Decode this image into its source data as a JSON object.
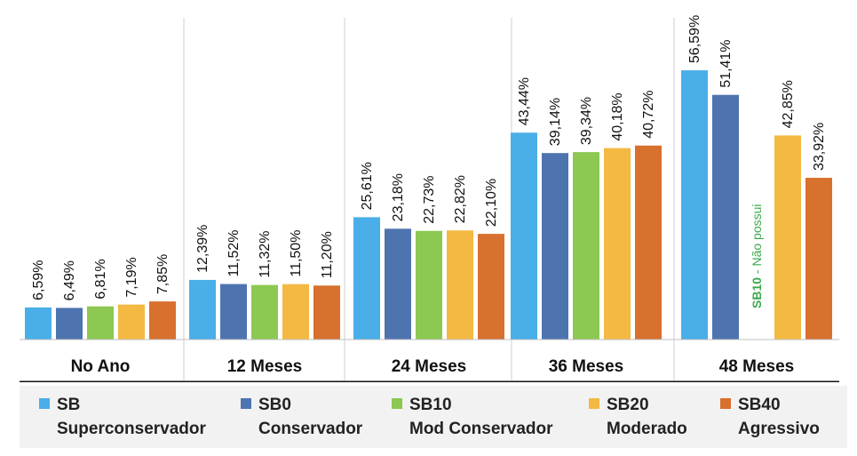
{
  "chart_data": {
    "type": "bar",
    "categories": [
      "No Ano",
      "12 Meses",
      "24 Meses",
      "36 Meses",
      "48 Meses"
    ],
    "series": [
      {
        "name": "SB Superconservador",
        "short": "SB",
        "sub": "Superconservador",
        "color": "#4aaee8",
        "values": [
          6.59,
          12.39,
          25.61,
          43.44,
          56.59
        ],
        "labels": [
          "6,59%",
          "12,39%",
          "25,61%",
          "43,44%",
          "56,59%"
        ]
      },
      {
        "name": "SB0 Conservador",
        "short": "SB0",
        "sub": "Conservador",
        "color": "#4e74b0",
        "values": [
          6.49,
          11.52,
          23.18,
          39.14,
          51.41
        ],
        "labels": [
          "6,49%",
          "11,52%",
          "23,18%",
          "39,14%",
          "51,41%"
        ]
      },
      {
        "name": "SB10 Mod Conservador",
        "short": "SB10",
        "sub": "Mod Conservador",
        "color": "#8cc852",
        "values": [
          6.81,
          11.32,
          22.73,
          39.34,
          null
        ],
        "labels": [
          "6,81%",
          "11,32%",
          "22,73%",
          "39,34%",
          null
        ]
      },
      {
        "name": "SB20 Moderado",
        "short": "SB20",
        "sub": "Moderado",
        "color": "#f4b942",
        "values": [
          7.19,
          11.5,
          22.82,
          40.18,
          42.85
        ],
        "labels": [
          "7,19%",
          "11,50%",
          "22,82%",
          "40,18%",
          "42,85%"
        ]
      },
      {
        "name": "SB40 Agressivo",
        "short": "SB40",
        "sub": "Agressivo",
        "color": "#d8702e",
        "values": [
          7.85,
          11.2,
          22.1,
          40.72,
          33.92
        ],
        "labels": [
          "7,85%",
          "11,20%",
          "22,10%",
          "40,72%",
          "33,92%"
        ]
      }
    ],
    "ylim": [
      0,
      60
    ],
    "grid": false,
    "legend": "bottom",
    "annotations": [
      {
        "text_strong": "SB10",
        "text_rest": " - Não possui",
        "color": "#3aaa4a",
        "category": "48 Meses",
        "series": "SB10 Mod Conservador"
      }
    ]
  }
}
